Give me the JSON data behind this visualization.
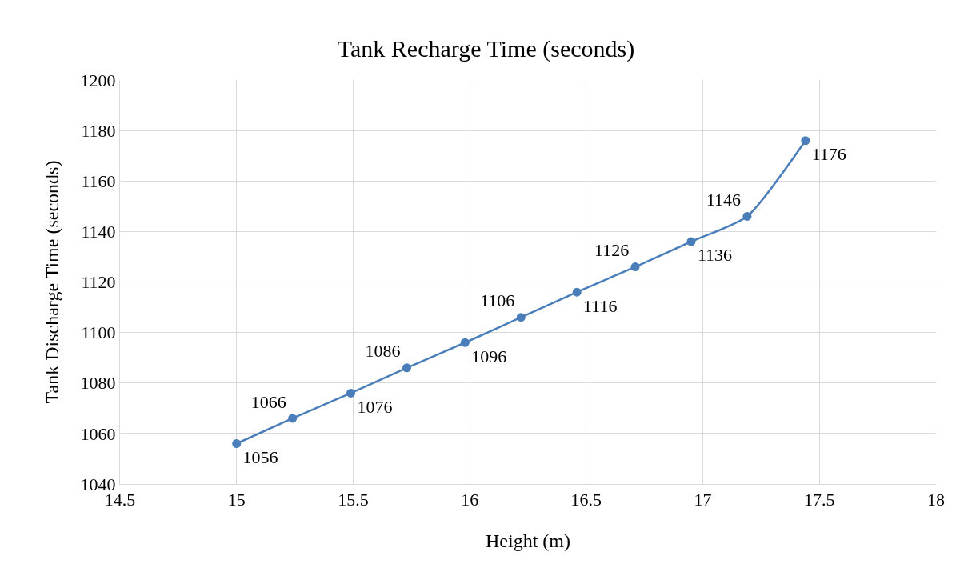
{
  "chart_data": {
    "type": "line",
    "title": "Tank Recharge Time (seconds)",
    "xlabel": "Height (m)",
    "ylabel": "Tank Discharge Time (seconds)",
    "x": [
      15,
      15.24,
      15.49,
      15.73,
      15.98,
      16.22,
      16.46,
      16.71,
      16.95,
      17.19,
      17.44
    ],
    "series": [
      {
        "color": "#4a7ebb",
        "values": [
          1056,
          1066,
          1076,
          1086,
          1096,
          1106,
          1116,
          1126,
          1136,
          1146,
          1176
        ]
      }
    ],
    "xlim": [
      14.5,
      18
    ],
    "xticks": [
      14.5,
      15,
      15.5,
      16,
      16.5,
      17,
      17.5,
      18
    ],
    "ylim": [
      1040,
      1200
    ],
    "yticks": [
      1040,
      1060,
      1080,
      1100,
      1120,
      1140,
      1160,
      1180,
      1200
    ],
    "grid": true,
    "legend": false,
    "marker": "circle",
    "line_style": "solid",
    "data_labels": true
  }
}
